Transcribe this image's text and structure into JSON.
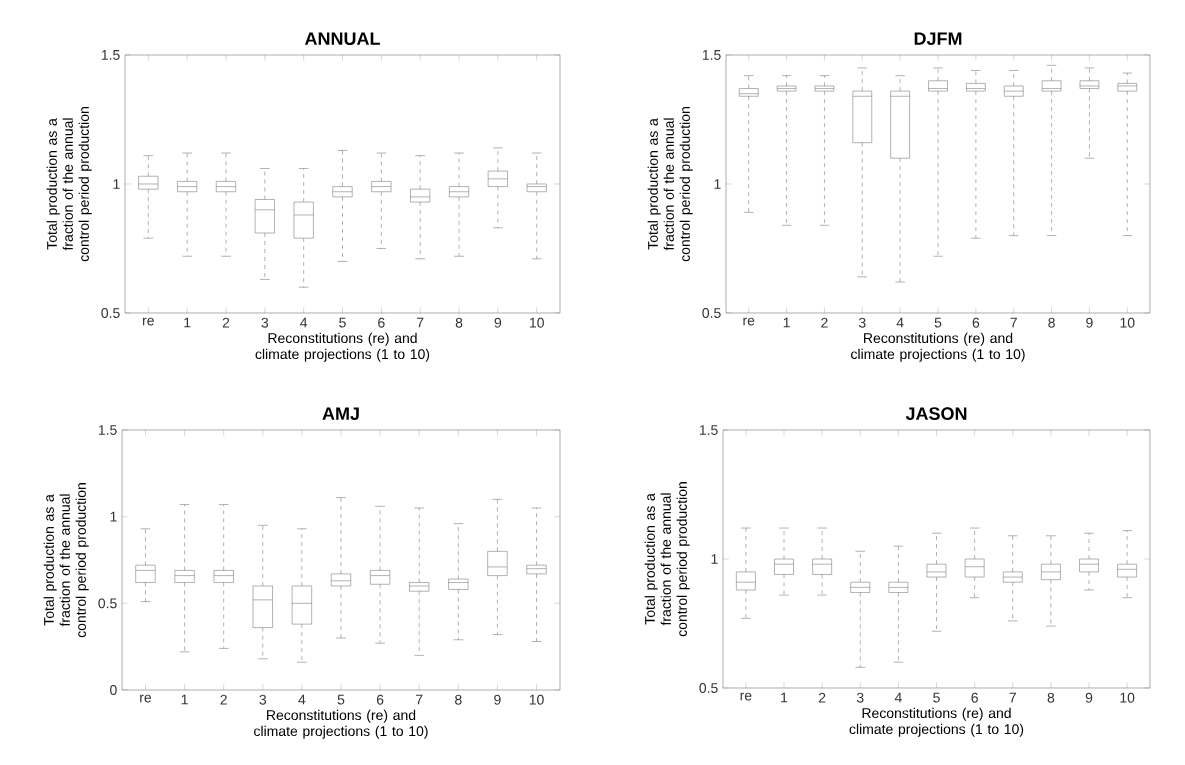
{
  "chart_data": [
    {
      "type": "box",
      "title": "ANNUAL",
      "xlabel": "Reconstitutions (re) and climate projections (1 to 10)",
      "ylabel": "Total production as a fraction of the annual control period production",
      "color": "#707070",
      "categories": [
        "re",
        "1",
        "2",
        "3",
        "4",
        "5",
        "6",
        "7",
        "8",
        "9",
        "10"
      ],
      "ylim": [
        0.5,
        1.5
      ],
      "yticks": [
        0.5,
        1,
        1.5
      ],
      "boxes": [
        {
          "low": 0.79,
          "q1": 0.98,
          "median": 1.0,
          "q3": 1.03,
          "high": 1.11
        },
        {
          "low": 0.72,
          "q1": 0.97,
          "median": 0.99,
          "q3": 1.01,
          "high": 1.12
        },
        {
          "low": 0.72,
          "q1": 0.97,
          "median": 0.99,
          "q3": 1.01,
          "high": 1.12
        },
        {
          "low": 0.63,
          "q1": 0.81,
          "median": 0.9,
          "q3": 0.94,
          "high": 1.06
        },
        {
          "low": 0.6,
          "q1": 0.79,
          "median": 0.88,
          "q3": 0.93,
          "high": 1.06
        },
        {
          "low": 0.7,
          "q1": 0.95,
          "median": 0.97,
          "q3": 0.99,
          "high": 1.13
        },
        {
          "low": 0.75,
          "q1": 0.97,
          "median": 0.99,
          "q3": 1.01,
          "high": 1.12
        },
        {
          "low": 0.71,
          "q1": 0.93,
          "median": 0.95,
          "q3": 0.98,
          "high": 1.11
        },
        {
          "low": 0.72,
          "q1": 0.95,
          "median": 0.97,
          "q3": 0.99,
          "high": 1.12
        },
        {
          "low": 0.83,
          "q1": 0.99,
          "median": 1.02,
          "q3": 1.05,
          "high": 1.14
        },
        {
          "low": 0.71,
          "q1": 0.97,
          "median": 0.99,
          "q3": 1.0,
          "high": 1.12
        }
      ]
    },
    {
      "type": "box",
      "title": "DJFM",
      "xlabel": "Reconstitutions (re) and climate projections (1 to 10)",
      "ylabel": "Total production as a fraction of the annual control period production",
      "color": "#707070",
      "categories": [
        "re",
        "1",
        "2",
        "3",
        "4",
        "5",
        "6",
        "7",
        "8",
        "9",
        "10"
      ],
      "ylim": [
        0.5,
        1.5
      ],
      "yticks": [
        0.5,
        1,
        1.5
      ],
      "boxes": [
        {
          "low": 0.89,
          "q1": 1.34,
          "median": 1.35,
          "q3": 1.37,
          "high": 1.42
        },
        {
          "low": 0.84,
          "q1": 1.36,
          "median": 1.37,
          "q3": 1.38,
          "high": 1.42
        },
        {
          "low": 0.84,
          "q1": 1.36,
          "median": 1.37,
          "q3": 1.38,
          "high": 1.42
        },
        {
          "low": 0.64,
          "q1": 1.16,
          "median": 1.34,
          "q3": 1.36,
          "high": 1.45
        },
        {
          "low": 0.62,
          "q1": 1.1,
          "median": 1.34,
          "q3": 1.36,
          "high": 1.42
        },
        {
          "low": 0.72,
          "q1": 1.36,
          "median": 1.37,
          "q3": 1.4,
          "high": 1.45
        },
        {
          "low": 0.79,
          "q1": 1.36,
          "median": 1.37,
          "q3": 1.39,
          "high": 1.44
        },
        {
          "low": 0.8,
          "q1": 1.34,
          "median": 1.36,
          "q3": 1.38,
          "high": 1.44
        },
        {
          "low": 0.8,
          "q1": 1.36,
          "median": 1.37,
          "q3": 1.4,
          "high": 1.46
        },
        {
          "low": 1.1,
          "q1": 1.37,
          "median": 1.38,
          "q3": 1.4,
          "high": 1.45
        },
        {
          "low": 0.8,
          "q1": 1.36,
          "median": 1.38,
          "q3": 1.39,
          "high": 1.43
        }
      ]
    },
    {
      "type": "box",
      "title": "AMJ",
      "xlabel": "Reconstitutions (re) and climate projections (1 to 10)",
      "ylabel": "Total production as a fraction of the annual control period production",
      "color": "#707070",
      "categories": [
        "re",
        "1",
        "2",
        "3",
        "4",
        "5",
        "6",
        "7",
        "8",
        "9",
        "10"
      ],
      "ylim": [
        0,
        1.5
      ],
      "yticks": [
        0,
        0.5,
        1,
        1.5
      ],
      "boxes": [
        {
          "low": 0.51,
          "q1": 0.62,
          "median": 0.69,
          "q3": 0.72,
          "high": 0.93
        },
        {
          "low": 0.22,
          "q1": 0.62,
          "median": 0.66,
          "q3": 0.69,
          "high": 1.07
        },
        {
          "low": 0.24,
          "q1": 0.62,
          "median": 0.66,
          "q3": 0.69,
          "high": 1.07
        },
        {
          "low": 0.18,
          "q1": 0.36,
          "median": 0.52,
          "q3": 0.6,
          "high": 0.95
        },
        {
          "low": 0.16,
          "q1": 0.38,
          "median": 0.5,
          "q3": 0.6,
          "high": 0.93
        },
        {
          "low": 0.3,
          "q1": 0.6,
          "median": 0.63,
          "q3": 0.67,
          "high": 1.11
        },
        {
          "low": 0.27,
          "q1": 0.61,
          "median": 0.66,
          "q3": 0.69,
          "high": 1.06
        },
        {
          "low": 0.2,
          "q1": 0.57,
          "median": 0.6,
          "q3": 0.62,
          "high": 1.05
        },
        {
          "low": 0.29,
          "q1": 0.58,
          "median": 0.62,
          "q3": 0.64,
          "high": 0.96
        },
        {
          "low": 0.32,
          "q1": 0.66,
          "median": 0.71,
          "q3": 0.8,
          "high": 1.1
        },
        {
          "low": 0.28,
          "q1": 0.67,
          "median": 0.7,
          "q3": 0.72,
          "high": 1.05
        }
      ]
    },
    {
      "type": "box",
      "title": "JASON",
      "xlabel": "Reconstitutions (re) and climate projections (1 to 10)",
      "ylabel": "Total production as a fraction of the annual control period production",
      "color": "#707070",
      "categories": [
        "re",
        "1",
        "2",
        "3",
        "4",
        "5",
        "6",
        "7",
        "8",
        "9",
        "10"
      ],
      "ylim": [
        0.5,
        1.5
      ],
      "yticks": [
        0.5,
        1,
        1.5
      ],
      "boxes": [
        {
          "low": 0.77,
          "q1": 0.88,
          "median": 0.91,
          "q3": 0.95,
          "high": 1.12
        },
        {
          "low": 0.86,
          "q1": 0.94,
          "median": 0.98,
          "q3": 1.0,
          "high": 1.12
        },
        {
          "low": 0.86,
          "q1": 0.94,
          "median": 0.98,
          "q3": 1.0,
          "high": 1.12
        },
        {
          "low": 0.58,
          "q1": 0.87,
          "median": 0.89,
          "q3": 0.91,
          "high": 1.03
        },
        {
          "low": 0.6,
          "q1": 0.87,
          "median": 0.89,
          "q3": 0.91,
          "high": 1.05
        },
        {
          "low": 0.72,
          "q1": 0.93,
          "median": 0.95,
          "q3": 0.98,
          "high": 1.1
        },
        {
          "low": 0.85,
          "q1": 0.93,
          "median": 0.97,
          "q3": 1.0,
          "high": 1.12
        },
        {
          "low": 0.76,
          "q1": 0.91,
          "median": 0.93,
          "q3": 0.95,
          "high": 1.09
        },
        {
          "low": 0.74,
          "q1": 0.92,
          "median": 0.95,
          "q3": 0.98,
          "high": 1.09
        },
        {
          "low": 0.88,
          "q1": 0.95,
          "median": 0.98,
          "q3": 1.0,
          "high": 1.1
        },
        {
          "low": 0.85,
          "q1": 0.93,
          "median": 0.96,
          "q3": 0.98,
          "high": 1.11
        }
      ]
    }
  ]
}
